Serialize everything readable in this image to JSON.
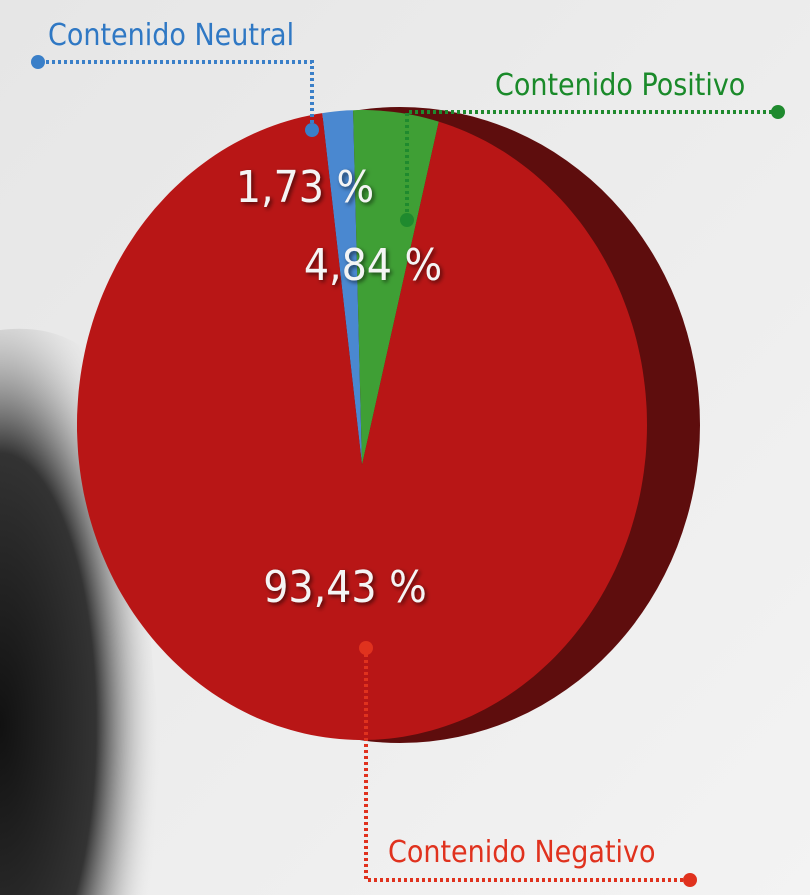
{
  "chart_data": {
    "type": "pie",
    "series": [
      {
        "name": "Contenido Neutral",
        "color": "#4a88d0",
        "values": [
          1.73
        ],
        "value_labels": [
          "1,73 %"
        ]
      },
      {
        "name": "Contenido Positivo",
        "color": "#3f9f35",
        "values": [
          4.84
        ],
        "value_labels": [
          "4,84 %"
        ]
      },
      {
        "name": "Contenido Negativo",
        "color": "#b81616",
        "values": [
          93.43
        ],
        "value_labels": [
          "93,43 %"
        ]
      }
    ]
  }
}
